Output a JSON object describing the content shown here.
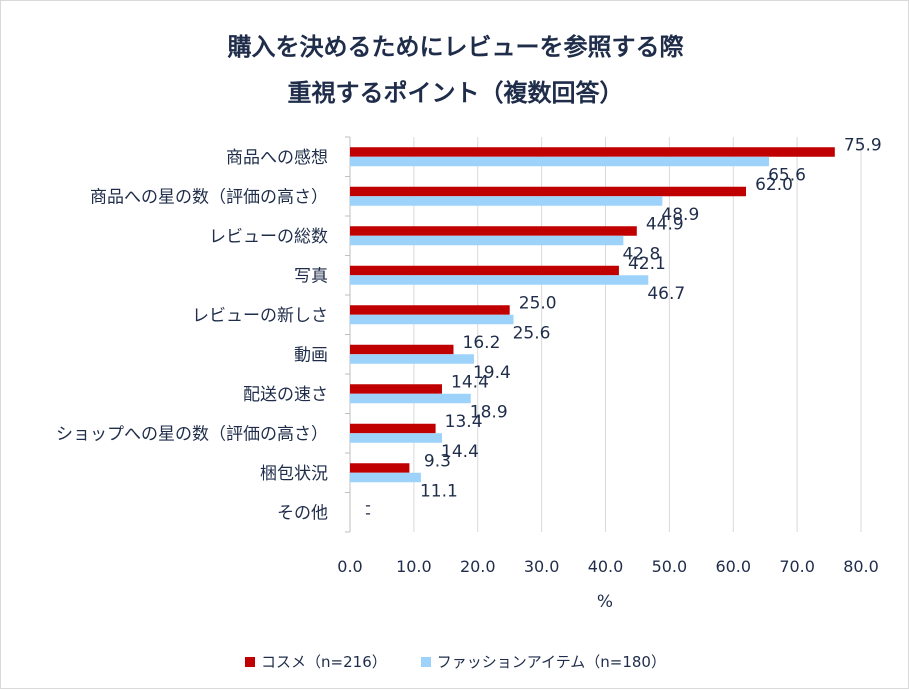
{
  "chart_data": {
    "type": "bar",
    "orientation": "horizontal",
    "title_lines": [
      "購入を決めるためにレビューを参照する際",
      "重視するポイント（複数回答）"
    ],
    "categories": [
      "商品への感想",
      "商品への星の数（評価の高さ）",
      "レビューの総数",
      "写真",
      "レビューの新しさ",
      "動画",
      "配送の速さ",
      "ショップへの星の数（評価の高さ）",
      "梱包状況",
      "その他"
    ],
    "series": [
      {
        "name": "コスメ（n=216）",
        "color": "#c00000",
        "values": [
          75.9,
          62.0,
          44.9,
          42.1,
          25.0,
          16.2,
          14.4,
          13.4,
          9.3,
          null
        ],
        "labels": [
          "75.9",
          "62.0",
          "44.9",
          "42.1",
          "25.0",
          "16.2",
          "14.4",
          "13.4",
          "9.3",
          "-"
        ]
      },
      {
        "name": "ファッションアイテム（n=180）",
        "color": "#9dd3fb",
        "values": [
          65.6,
          48.9,
          42.8,
          46.7,
          25.6,
          19.4,
          18.9,
          14.4,
          11.1,
          null
        ],
        "labels": [
          "65.6",
          "48.9",
          "42.8",
          "46.7",
          "25.6",
          "19.4",
          "18.9",
          "14.4",
          "11.1",
          "-"
        ]
      }
    ],
    "xlabel": "%",
    "xlim": [
      0,
      80
    ],
    "xticks": [
      "0.0",
      "10.0",
      "20.0",
      "30.0",
      "40.0",
      "50.0",
      "60.0",
      "70.0",
      "80.0"
    ],
    "gridlines": true,
    "legend_position": "bottom"
  }
}
